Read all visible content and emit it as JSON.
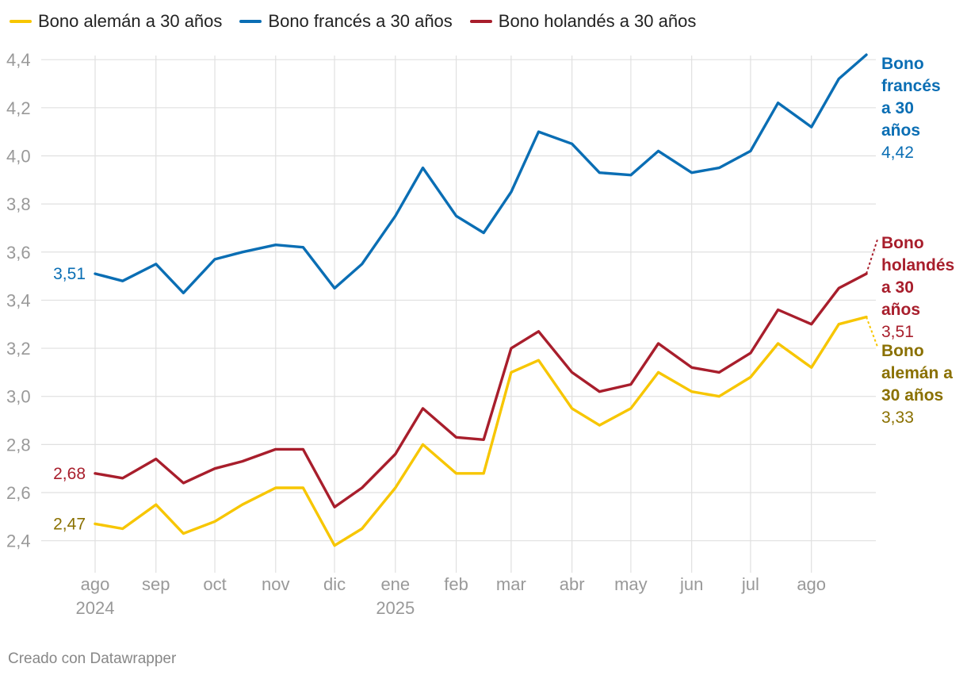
{
  "chart_data": {
    "type": "line",
    "ylim": [
      2.3,
      4.45
    ],
    "yticks": [
      "2,4",
      "2,6",
      "2,8",
      "3,0",
      "3,2",
      "3,4",
      "3,6",
      "3,8",
      "4,0",
      "4,2",
      "4,4"
    ],
    "ytick_values": [
      2.4,
      2.6,
      2.8,
      3.0,
      3.2,
      3.4,
      3.6,
      3.8,
      4.0,
      4.2,
      4.4
    ],
    "xticks": [
      {
        "label": "ago",
        "year": "2024",
        "date": "2024-08-01"
      },
      {
        "label": "sep",
        "year": "",
        "date": "2024-09-01"
      },
      {
        "label": "oct",
        "year": "",
        "date": "2024-10-01"
      },
      {
        "label": "nov",
        "year": "",
        "date": "2024-11-01"
      },
      {
        "label": "dic",
        "year": "",
        "date": "2024-12-01"
      },
      {
        "label": "ene",
        "year": "2025",
        "date": "2025-01-01"
      },
      {
        "label": "feb",
        "year": "",
        "date": "2025-02-01"
      },
      {
        "label": "mar",
        "year": "",
        "date": "2025-03-01"
      },
      {
        "label": "abr",
        "year": "",
        "date": "2025-04-01"
      },
      {
        "label": "may",
        "year": "",
        "date": "2025-05-01"
      },
      {
        "label": "jun",
        "year": "",
        "date": "2025-06-01"
      },
      {
        "label": "jul",
        "year": "",
        "date": "2025-07-01"
      },
      {
        "label": "ago",
        "year": "",
        "date": "2025-08-01"
      }
    ],
    "x": [
      "2024-08-01",
      "2024-08-15",
      "2024-09-01",
      "2024-09-15",
      "2024-10-01",
      "2024-10-15",
      "2024-11-01",
      "2024-11-15",
      "2024-12-01",
      "2024-12-15",
      "2025-01-01",
      "2025-01-15",
      "2025-02-01",
      "2025-02-15",
      "2025-03-01",
      "2025-03-15",
      "2025-04-01",
      "2025-04-15",
      "2025-05-01",
      "2025-05-15",
      "2025-06-01",
      "2025-06-15",
      "2025-07-01",
      "2025-07-15",
      "2025-08-01",
      "2025-08-15",
      "2025-08-29"
    ],
    "series": [
      {
        "name": "Bono alemán a 30 años",
        "color": "#f7c600",
        "label_color": "#8a7000",
        "start_value": "2,47",
        "end_value": "3,33",
        "end_label": [
          "Bono",
          "alemán a",
          "30 años"
        ],
        "values": [
          2.47,
          2.45,
          2.55,
          2.43,
          2.48,
          2.55,
          2.62,
          2.62,
          2.38,
          2.45,
          2.62,
          2.8,
          2.68,
          2.68,
          3.1,
          3.15,
          2.95,
          2.88,
          2.95,
          3.1,
          3.02,
          3.0,
          3.08,
          3.22,
          3.12,
          3.3,
          3.33
        ]
      },
      {
        "name": "Bono francés a 30 años",
        "color": "#0a6eb4",
        "label_color": "#0a6eb4",
        "start_value": "3,51",
        "end_value": "4,42",
        "end_label": [
          "Bono",
          "francés",
          "a 30",
          "años"
        ],
        "values": [
          3.51,
          3.48,
          3.55,
          3.43,
          3.57,
          3.6,
          3.63,
          3.62,
          3.45,
          3.55,
          3.75,
          3.95,
          3.75,
          3.68,
          3.85,
          4.1,
          4.05,
          3.93,
          3.92,
          4.02,
          3.93,
          3.95,
          4.02,
          4.22,
          4.12,
          4.32,
          4.42
        ]
      },
      {
        "name": "Bono holandés a 30 años",
        "color": "#a81e2c",
        "label_color": "#a81e2c",
        "start_value": "2,68",
        "end_value": "3,51",
        "end_label": [
          "Bono",
          "holandés",
          "a 30",
          "años"
        ],
        "values": [
          2.68,
          2.66,
          2.74,
          2.64,
          2.7,
          2.73,
          2.78,
          2.78,
          2.54,
          2.62,
          2.76,
          2.95,
          2.83,
          2.82,
          3.2,
          3.27,
          3.1,
          3.02,
          3.05,
          3.22,
          3.12,
          3.1,
          3.18,
          3.36,
          3.3,
          3.45,
          3.51
        ]
      }
    ],
    "legend": "top-left",
    "grid": true
  },
  "credit": "Creado con Datawrapper"
}
